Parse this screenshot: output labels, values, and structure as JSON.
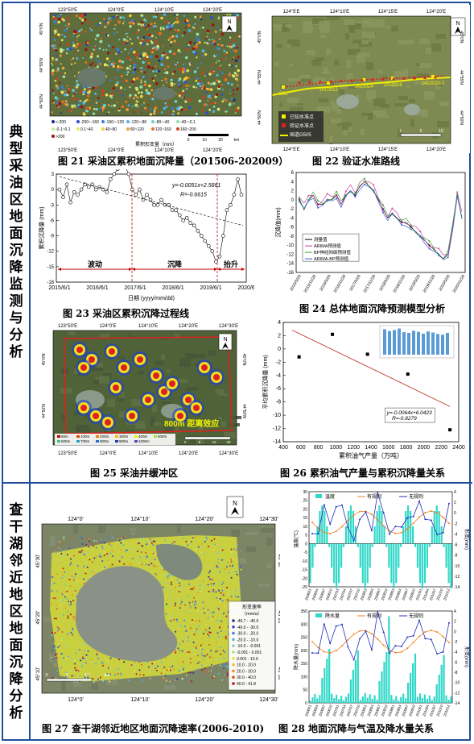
{
  "sections": {
    "section1_label": [
      "典",
      "型",
      "采",
      "油",
      "区",
      "地",
      "面",
      "沉",
      "降",
      "监",
      "测",
      "与",
      "分",
      "析"
    ],
    "section2_label": [
      "查",
      "干",
      "湖",
      "邻",
      "近",
      "地",
      "区",
      "地",
      "面",
      "沉",
      "降",
      "分",
      "析"
    ]
  },
  "captions": {
    "fig21": "图 21  采油区累积地面沉降量（201506-202009）",
    "fig22": "图 22  验证水准路线",
    "fig23": "图 23  采油区累积沉降过程线",
    "fig24": "图 24  总体地面沉降预测模型分析",
    "fig25": "图 25  采油井缓冲区",
    "fig26": "图 26  累积油气产量与累积沉降量关系",
    "fig27": "图 27  查干湖邻近地区地面沉降速率(2006-2010)",
    "fig28": "图 28  地面沉降与气温及降水量关系"
  },
  "fig21": {
    "top_ticks": [
      "123°50'E",
      "124°0'E",
      "124°10'E",
      "124°20'E"
    ],
    "bottom_ticks": [
      "123°50'E",
      "124°0'E",
      "124°10'E",
      "124°20'E"
    ],
    "left_ticks": [
      "45°0'N",
      "44°55'N",
      "44°50'N"
    ],
    "legend_items": [
      "<-200",
      "-200~-160",
      "-160~-120",
      "-120~-80",
      "-80~-40",
      "-40~-0.1",
      "-0.1~0.1",
      "0.1~40",
      "40~80",
      "80~120",
      "120~160",
      "160~200",
      ">200"
    ],
    "legend_title": "累积形变量（mm）",
    "scale": [
      "0",
      "10",
      "20",
      "km"
    ],
    "north": "N",
    "colors": [
      "#1a2a8a",
      "#2a4fd0",
      "#3a7ee0",
      "#4fb0e8",
      "#6ad0d8",
      "#8ee0b0",
      "#c8e890",
      "#e8e860",
      "#f0d040",
      "#f0a030",
      "#e87020",
      "#d04020",
      "#a01010"
    ]
  },
  "fig22": {
    "top_ticks": [
      "124°5'E",
      "124°10'E",
      "124°15'E",
      "124°20'E"
    ],
    "bottom_ticks": [
      "124°5'E",
      "124°10'E",
      "124°15'E",
      "124°20'E"
    ],
    "left_ticks": [
      "45°0'N",
      "44°55'N",
      "44°50'N"
    ],
    "right_ticks": [
      "45°0'N",
      "44°55'N",
      "44°50'N"
    ],
    "point_labels": [
      "G62",
      "1410012",
      "1410014",
      "1410016",
      "1410020-2"
    ],
    "legend": [
      "已知水准点",
      "验证水准点",
      "国道G505"
    ],
    "scale": [
      "0",
      "5",
      "10",
      "km"
    ],
    "north": "N"
  },
  "fig23": {
    "equation": "y=-0.0051x+2.5861",
    "r_value": "R=-0.6615",
    "ylabel": "累积沉降量 (mm)",
    "xlabel": "日期 (yyyy/mm/dd)",
    "yticks": [
      "3",
      "0",
      "-3",
      "-6",
      "-9",
      "-12",
      "-15",
      "-18"
    ],
    "xticks": [
      "2015/6/1",
      "2016/6/1",
      "2017/6/1",
      "2018/6/1",
      "2019/6/1",
      "2020/6/1"
    ],
    "phases": [
      "波动",
      "沉降",
      "抬升"
    ]
  },
  "fig24": {
    "ylabel": "沉降值(mm)",
    "yticks": [
      "6",
      "4",
      "2",
      "0",
      "-2",
      "-4",
      "-6",
      "-8",
      "-10",
      "-12",
      "-14",
      "-16"
    ],
    "xticks": [
      "2015/5/26",
      "2015/11/26",
      "2016/5/26",
      "2016/11/26",
      "2017/5/26",
      "2017/11/26",
      "2018/5/26",
      "2018/11/26",
      "2019/5/26",
      "2019/11/26",
      "2020/5/26",
      "2020/11/26"
    ],
    "legend": [
      "测量值",
      "ARIMA预测值",
      "BP神经网络预测值",
      "ARIMA-BP预测值"
    ],
    "colors": [
      "#000000",
      "#d040a0",
      "#40a040",
      "#4060d0"
    ]
  },
  "fig25": {
    "top_ticks": [
      "123°50'E",
      "124°0'E",
      "124°10'E",
      "124°20'E",
      "124°30'E"
    ],
    "bottom_ticks": [
      "123°50'E",
      "124°0'E",
      "124°10'E",
      "124°20'E",
      "124°30'E"
    ],
    "left_ticks": [
      "45°0'N",
      "44°50'N"
    ],
    "right_ticks": [
      "45°0'N",
      "44°50'N"
    ],
    "annotation": "800m 距离效应",
    "legend": [
      "50m",
      "100m",
      "200m",
      "300m",
      "400m",
      "500m",
      "600m",
      "700m",
      "800m",
      "900m",
      "1000m"
    ],
    "scale": [
      "0",
      "5",
      "10",
      "20"
    ],
    "north": "N"
  },
  "fig26": {
    "ylabel": "平均累积沉降量 (mm)",
    "xlabel": "累积油气产量（万吨）",
    "equation": "y=-0.0064x+6.0423",
    "r_value": "R=-0.8279",
    "yticks": [
      "4",
      "2",
      "0",
      "-2",
      "-4",
      "-6",
      "-8",
      "-10",
      "-12",
      "-14"
    ],
    "xticks": [
      "400",
      "600",
      "800",
      "1000",
      "1200",
      "1400",
      "1600",
      "1800",
      "2000",
      "2200",
      "2400"
    ]
  },
  "fig27": {
    "top_ticks": [
      "124°0'",
      "124°10'",
      "124°20'",
      "124°30'"
    ],
    "bottom_ticks": [
      "124°0'",
      "124°10'",
      "124°20'",
      "124°30'"
    ],
    "left_ticks": [
      "45°30'",
      "45°20'",
      "45°10'"
    ],
    "right_ticks": [
      "45°30'",
      "45°20'",
      "45°10'"
    ],
    "legend_title": "形变速率",
    "legend_unit": "（mm/a）",
    "legend": [
      "-46.7 - -40.0",
      "-40.0 - -30.0",
      "-30.0 - -20.0",
      "-20.0 - -10.0",
      "-10.0 - -0.001",
      "-0.001 - 0.001",
      "0.001 - 10.0",
      "10.0 - 20.0",
      "20.0 - 30.0",
      "30.0 - 40.0",
      "40.0 - 41.8"
    ],
    "legend_colors": [
      "#2a2a90",
      "#3050c8",
      "#4a80e0",
      "#60b0e0",
      "#80d0c0",
      "#a0e0a0",
      "#e8e050",
      "#f0c030",
      "#f09020",
      "#e05020",
      "#c01010"
    ],
    "scale": [
      "0",
      "5",
      "10",
      "km"
    ],
    "north": "N"
  },
  "fig28": {
    "top": {
      "legend": [
        "温度",
        "有规则",
        "无规则"
      ],
      "ylabel_left": "温度(℃)",
      "ylabel_right": "形变(mm)",
      "yticks_left": [
        "30",
        "25",
        "20",
        "15",
        "10",
        "5",
        "0",
        "-5",
        "-10",
        "-15",
        "-20",
        "-25"
      ],
      "yticks_right": [
        "4",
        "2",
        "0",
        "-2",
        "-4",
        "-6",
        "-8",
        "-10",
        "-12",
        "-14"
      ]
    },
    "bottom": {
      "legend": [
        "降水量",
        "有规则",
        "无规则"
      ],
      "ylabel_left": "降水量(mm)",
      "ylabel_right": "形变(mm)",
      "yticks_left": [
        "350",
        "300",
        "250",
        "200",
        "150",
        "100",
        "50",
        "0"
      ],
      "yticks_right": [
        "4",
        "2",
        "0",
        "-2",
        "-4",
        "-6",
        "-8",
        "-10",
        "-12",
        "-14"
      ]
    },
    "xticks": [
      "200601",
      "200604",
      "200607",
      "200610",
      "200701",
      "200704",
      "200707",
      "200710",
      "200801",
      "200804",
      "200807",
      "200810",
      "200901",
      "200904",
      "200907",
      "200910",
      "201001",
      "201004",
      "201007",
      "201010",
      "201012"
    ]
  }
}
